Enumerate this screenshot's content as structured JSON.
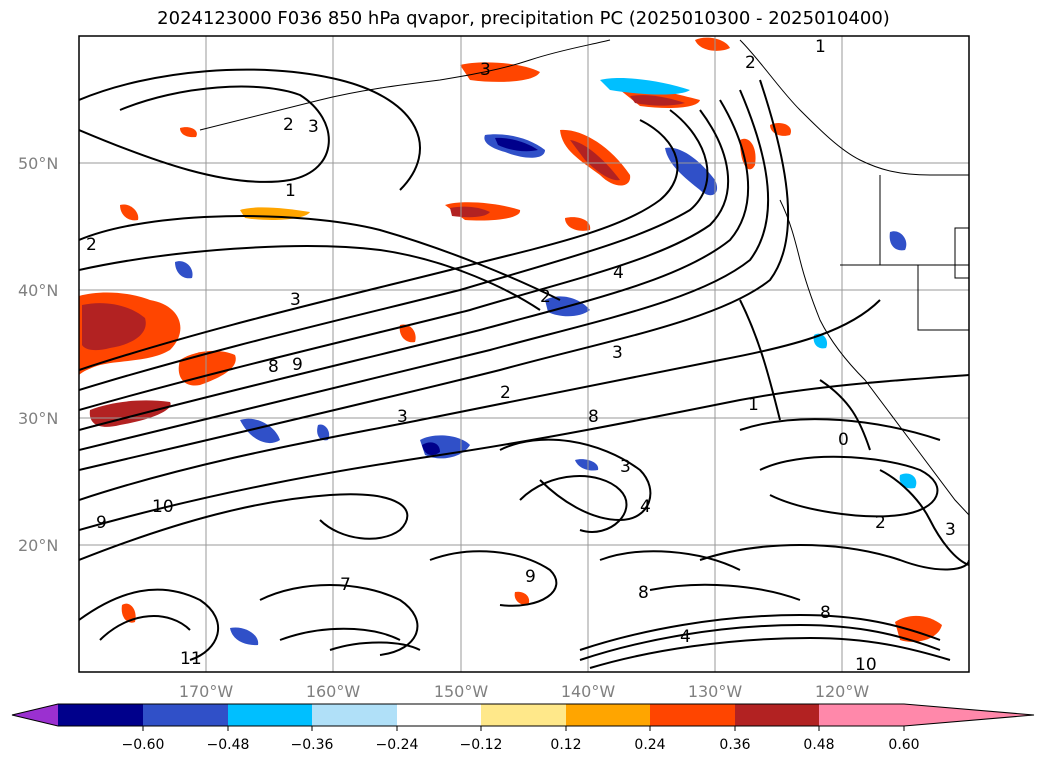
{
  "title": "2024123000 F036 850 hPa qvapor, precipitation PC (2025010300 - 2025010400)",
  "map": {
    "lat_labels": [
      "50°N",
      "40°N",
      "30°N",
      "20°N"
    ],
    "lon_labels": [
      "170°W",
      "160°W",
      "150°W",
      "140°W",
      "130°W",
      "120°W"
    ],
    "contour_labels": [
      "1",
      "2",
      "3",
      "3",
      "2",
      "1",
      "2",
      "3",
      "4",
      "2",
      "3",
      "8",
      "9",
      "2",
      "3",
      "1",
      "8",
      "3",
      "4",
      "10",
      "9",
      "7",
      "9",
      "8",
      "4",
      "8",
      "10",
      "11",
      "2",
      "0",
      "3"
    ]
  },
  "colorbar": {
    "ticks": [
      "−0.60",
      "−0.48",
      "−0.36",
      "−0.24",
      "−0.12",
      "0.12",
      "0.24",
      "0.36",
      "0.48",
      "0.60"
    ],
    "colors": [
      "#9b30d0",
      "#00008b",
      "#3050c8",
      "#00bfff",
      "#b0e0f8",
      "#ffffff",
      "#ffe88a",
      "#ffa500",
      "#ff4500",
      "#b22222",
      "#ff88aa"
    ]
  }
}
